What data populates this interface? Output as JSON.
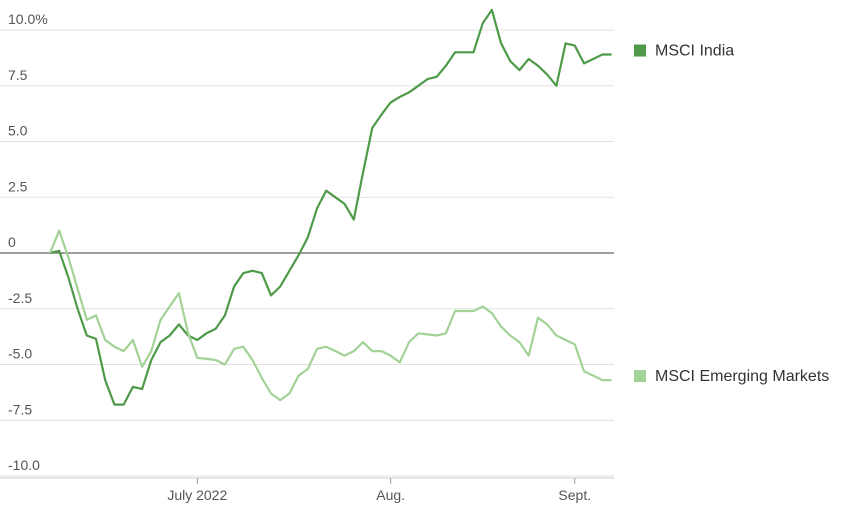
{
  "chart_data": {
    "type": "line",
    "categories": [
      null,
      null,
      null,
      null,
      null,
      null,
      null,
      null,
      null,
      null,
      null,
      null,
      null,
      null,
      null,
      null,
      "July 2022",
      null,
      null,
      null,
      null,
      null,
      null,
      null,
      null,
      null,
      null,
      null,
      null,
      null,
      null,
      null,
      null,
      null,
      null,
      null,
      null,
      "Aug.",
      null,
      null,
      null,
      null,
      null,
      null,
      null,
      null,
      null,
      null,
      null,
      null,
      null,
      null,
      null,
      null,
      null,
      null,
      null,
      "Sept.",
      null,
      null,
      null,
      null
    ],
    "series": [
      {
        "name": "MSCI India",
        "color": "#4e9a48",
        "values": [
          0,
          0.1,
          -1.1,
          -2.5,
          -3.7,
          -3.85,
          -5.7,
          -6.8,
          -6.8,
          -6.0,
          -6.1,
          -4.8,
          -4.0,
          -3.7,
          -3.2,
          -3.7,
          -3.9,
          -3.6,
          -3.4,
          -2.8,
          -1.5,
          -0.9,
          -0.8,
          -0.9,
          -1.9,
          -1.5,
          -0.8,
          -0.1,
          0.7,
          2.0,
          2.8,
          2.5,
          2.2,
          1.5,
          3.6,
          5.6,
          6.2,
          6.75,
          7.0,
          7.2,
          7.5,
          7.8,
          7.9,
          8.4,
          9.0,
          9.0,
          9.0,
          10.3,
          10.9,
          9.4,
          8.6,
          8.2,
          8.7,
          8.4,
          8.0,
          7.5,
          9.4,
          9.3,
          8.5,
          8.7,
          8.9,
          8.9
        ]
      },
      {
        "name": "MSCI Emerging Markets",
        "color": "#a3d296",
        "values": [
          0,
          1.0,
          -0.2,
          -1.6,
          -3.0,
          -2.8,
          -3.9,
          -4.2,
          -4.4,
          -3.9,
          -5.1,
          -4.4,
          -3.0,
          -2.4,
          -1.8,
          -3.6,
          -4.7,
          -4.75,
          -4.8,
          -5.0,
          -4.3,
          -4.2,
          -4.8,
          -5.6,
          -6.3,
          -6.6,
          -6.3,
          -5.5,
          -5.2,
          -4.3,
          -4.2,
          -4.4,
          -4.6,
          -4.4,
          -4.0,
          -4.4,
          -4.4,
          -4.6,
          -4.9,
          -4.0,
          -3.6,
          -3.65,
          -3.7,
          -3.6,
          -2.6,
          -2.6,
          -2.6,
          -2.4,
          -2.7,
          -3.3,
          -3.7,
          -4.0,
          -4.6,
          -2.9,
          -3.2,
          -3.7,
          -3.9,
          -4.1,
          -5.3,
          -5.5,
          -5.7,
          -5.7
        ]
      }
    ],
    "ylim": [
      -10,
      10
    ],
    "yticks": [
      {
        "value": 10,
        "label": "10.0%"
      },
      7.5,
      {
        "value": 5,
        "label": "5.0"
      },
      2.5,
      0,
      -2.5,
      {
        "value": -5,
        "label": "-5.0"
      },
      -7.5,
      {
        "value": -10,
        "label": "-10.0"
      }
    ],
    "grid": true
  }
}
